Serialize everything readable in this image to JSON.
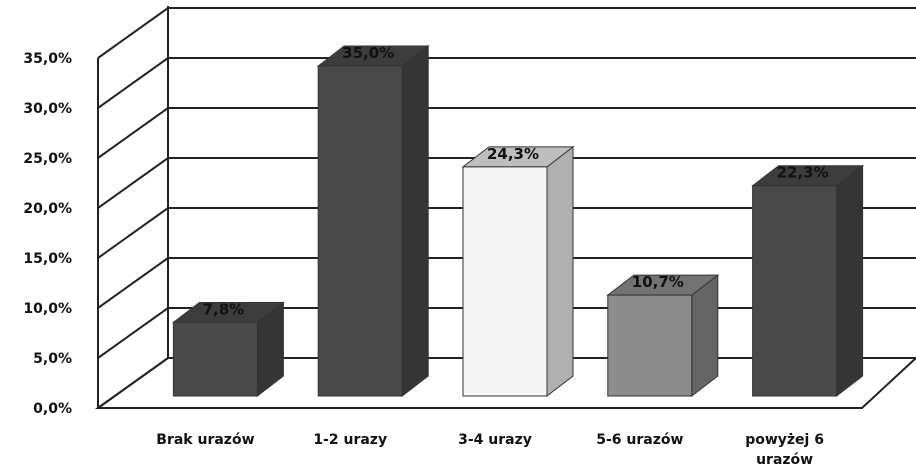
{
  "chart_data": {
    "type": "bar",
    "categories": [
      "Brak urazów",
      "1-2 urazy",
      "3-4 urazy",
      "5-6 urazów",
      "powyżej 6 urazów"
    ],
    "values": [
      7.8,
      35.0,
      24.3,
      10.7,
      22.3
    ],
    "data_labels": [
      "7,8%",
      "35,0%",
      "24,3%",
      "10,7%",
      "22,3%"
    ],
    "y_ticks": [
      "0,0%",
      "5,0%",
      "10,0%",
      "15,0%",
      "20,0%",
      "25,0%",
      "30,0%",
      "35,0%"
    ],
    "ylim": [
      0,
      35
    ],
    "grid": true,
    "three_d": true,
    "bar_colors": [
      "#4a4a4a",
      "#4a4a4a",
      "#f4f4f4",
      "#8c8c8c",
      "#4a4a4a"
    ],
    "title": "",
    "xlabel": "",
    "ylabel": ""
  }
}
